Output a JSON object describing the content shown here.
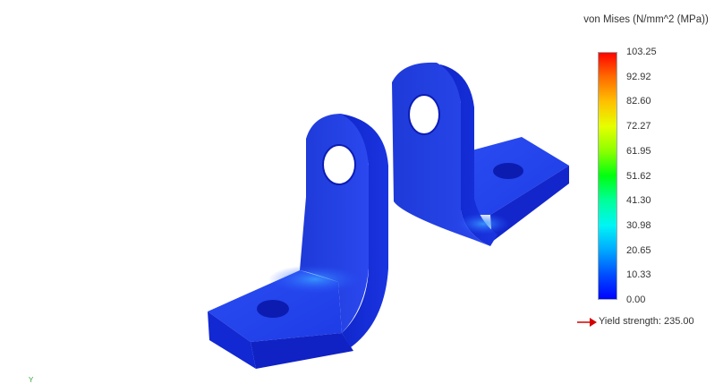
{
  "legend": {
    "title": "von Mises (N/mm^2 (MPa))",
    "ticks": [
      "103.25",
      "92.92",
      "82.60",
      "72.27",
      "61.95",
      "51.62",
      "41.30",
      "30.98",
      "20.65",
      "10.33",
      "0.00"
    ],
    "colors": {
      "max": "#ff0000",
      "min": "#0000ff"
    }
  },
  "yield": {
    "label": "Yield strength: 235.00",
    "arrow_color": "#d40000"
  },
  "axis": {
    "y_label": "Y"
  },
  "model": {
    "part_name": "",
    "color_low_stress": "#1a3cf0"
  }
}
